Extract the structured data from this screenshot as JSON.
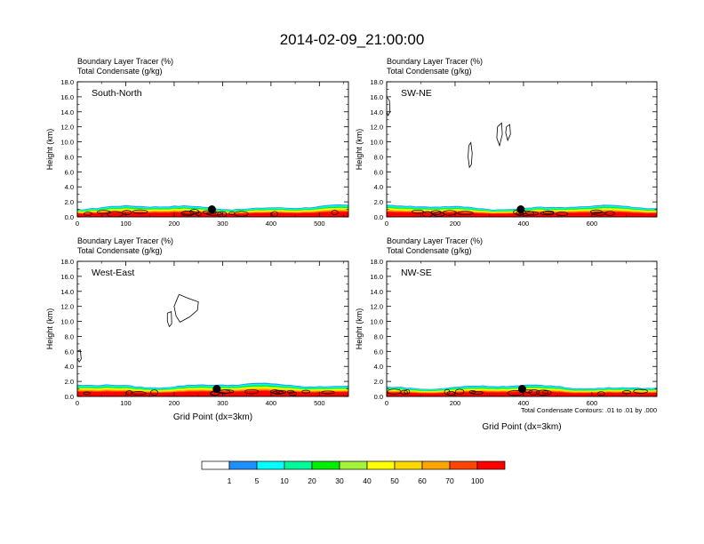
{
  "title": "2014-02-09_21:00:00",
  "footnote": "Total Condensate Contours: .01 to .01 by .000",
  "colors": {
    "band": [
      "#ffffff",
      "#1e90ff",
      "#00ffff",
      "#00fa9a",
      "#00ee00",
      "#a4f53a",
      "#ffff00",
      "#ffd700",
      "#ffa500",
      "#ff4500",
      "#ff0000"
    ],
    "marker": "#000000"
  },
  "chart_data": [
    {
      "type": "contour",
      "header_line1": "Boundary Layer Tracer   (%)",
      "header_line2": "Total Condensate   (g/kg)",
      "panel_label": "South-North",
      "ylabel": "Height (km)",
      "xlabel": "",
      "xlim": [
        0,
        560
      ],
      "ylim": [
        0,
        18
      ],
      "xticks": [
        0,
        100,
        200,
        300,
        400,
        500
      ],
      "yticks": [
        "0.0",
        "2.0",
        "4.0",
        "6.0",
        "8.0",
        "10.0",
        "12.0",
        "14.0",
        "16.0",
        "18.0"
      ],
      "boundary_layer_top_km": 1.3,
      "marker": {
        "x": 278,
        "y": 1.0
      },
      "condensate_contours": []
    },
    {
      "type": "contour",
      "header_line1": "Boundary Layer Tracer   (%)",
      "header_line2": "Total Condensate   (g/kg)",
      "panel_label": "SW-NE",
      "ylabel": "Height (km)",
      "xlabel": "",
      "xlim": [
        0,
        790
      ],
      "ylim": [
        0,
        18
      ],
      "xticks": [
        0,
        200,
        400,
        600
      ],
      "yticks": [
        "0.0",
        "2.0",
        "4.0",
        "6.0",
        "8.0",
        "10.0",
        "12.0",
        "14.0",
        "16.0",
        "18.0"
      ],
      "boundary_layer_top_km": 1.3,
      "marker": {
        "x": 392,
        "y": 1.0
      },
      "condensate_contours": [
        [
          [
            240,
            9.5
          ],
          [
            246,
            9.9
          ],
          [
            250,
            8.5
          ],
          [
            248,
            7.0
          ],
          [
            242,
            6.6
          ],
          [
            238,
            8.0
          ],
          [
            240,
            9.5
          ]
        ],
        [
          [
            324,
            12.0
          ],
          [
            336,
            12.5
          ],
          [
            338,
            11.0
          ],
          [
            330,
            9.5
          ],
          [
            322,
            10.5
          ],
          [
            324,
            12.0
          ]
        ],
        [
          [
            350,
            12.0
          ],
          [
            360,
            12.3
          ],
          [
            362,
            11.0
          ],
          [
            354,
            10.2
          ],
          [
            348,
            11.2
          ],
          [
            350,
            12.0
          ]
        ],
        [
          [
            0,
            16.0
          ],
          [
            8,
            15.5
          ],
          [
            10,
            14.0
          ],
          [
            4,
            13.5
          ],
          [
            0,
            14.0
          ]
        ]
      ]
    },
    {
      "type": "contour",
      "header_line1": "Boundary Layer Tracer   (%)",
      "header_line2": "Total Condensate   (g/kg)",
      "panel_label": "West-East",
      "ylabel": "Height (km)",
      "xlabel": "Grid Point (dx=3km)",
      "xlim": [
        0,
        560
      ],
      "ylim": [
        0,
        18
      ],
      "xticks": [
        0,
        100,
        200,
        300,
        400,
        500
      ],
      "yticks": [
        "0.0",
        "2.0",
        "4.0",
        "6.0",
        "8.0",
        "10.0",
        "12.0",
        "14.0",
        "16.0",
        "18.0"
      ],
      "boundary_layer_top_km": 1.5,
      "marker": {
        "x": 288,
        "y": 1.0
      },
      "condensate_contours": [
        [
          [
            210,
            13.6
          ],
          [
            228,
            13.1
          ],
          [
            250,
            12.6
          ],
          [
            248,
            11.5
          ],
          [
            232,
            10.6
          ],
          [
            212,
            9.9
          ],
          [
            204,
            10.7
          ],
          [
            200,
            12.0
          ],
          [
            210,
            13.6
          ]
        ],
        [
          [
            186,
            11.1
          ],
          [
            194,
            11.3
          ],
          [
            195,
            9.7
          ],
          [
            190,
            9.3
          ],
          [
            186,
            10.0
          ],
          [
            186,
            11.1
          ]
        ],
        [
          [
            0,
            6.0
          ],
          [
            6,
            6.2
          ],
          [
            8,
            5.0
          ],
          [
            4,
            4.6
          ],
          [
            0,
            5.0
          ]
        ]
      ]
    },
    {
      "type": "contour",
      "header_line1": "Boundary Layer Tracer   (%)",
      "header_line2": "Total Condensate   (g/kg)",
      "panel_label": "NW-SE",
      "ylabel": "Height (km)",
      "xlabel": "Grid Point (dx=3km)",
      "xlim": [
        0,
        790
      ],
      "ylim": [
        0,
        18
      ],
      "xticks": [
        0,
        200,
        400,
        600
      ],
      "yticks": [
        "0.0",
        "2.0",
        "4.0",
        "6.0",
        "8.0",
        "10.0",
        "12.0",
        "14.0",
        "16.0",
        "18.0"
      ],
      "boundary_layer_top_km": 1.3,
      "marker": {
        "x": 396,
        "y": 1.0
      },
      "condensate_contours": []
    }
  ],
  "colorbar": {
    "labels": [
      "1",
      "5",
      "10",
      "20",
      "30",
      "40",
      "50",
      "60",
      "70",
      "100"
    ]
  }
}
